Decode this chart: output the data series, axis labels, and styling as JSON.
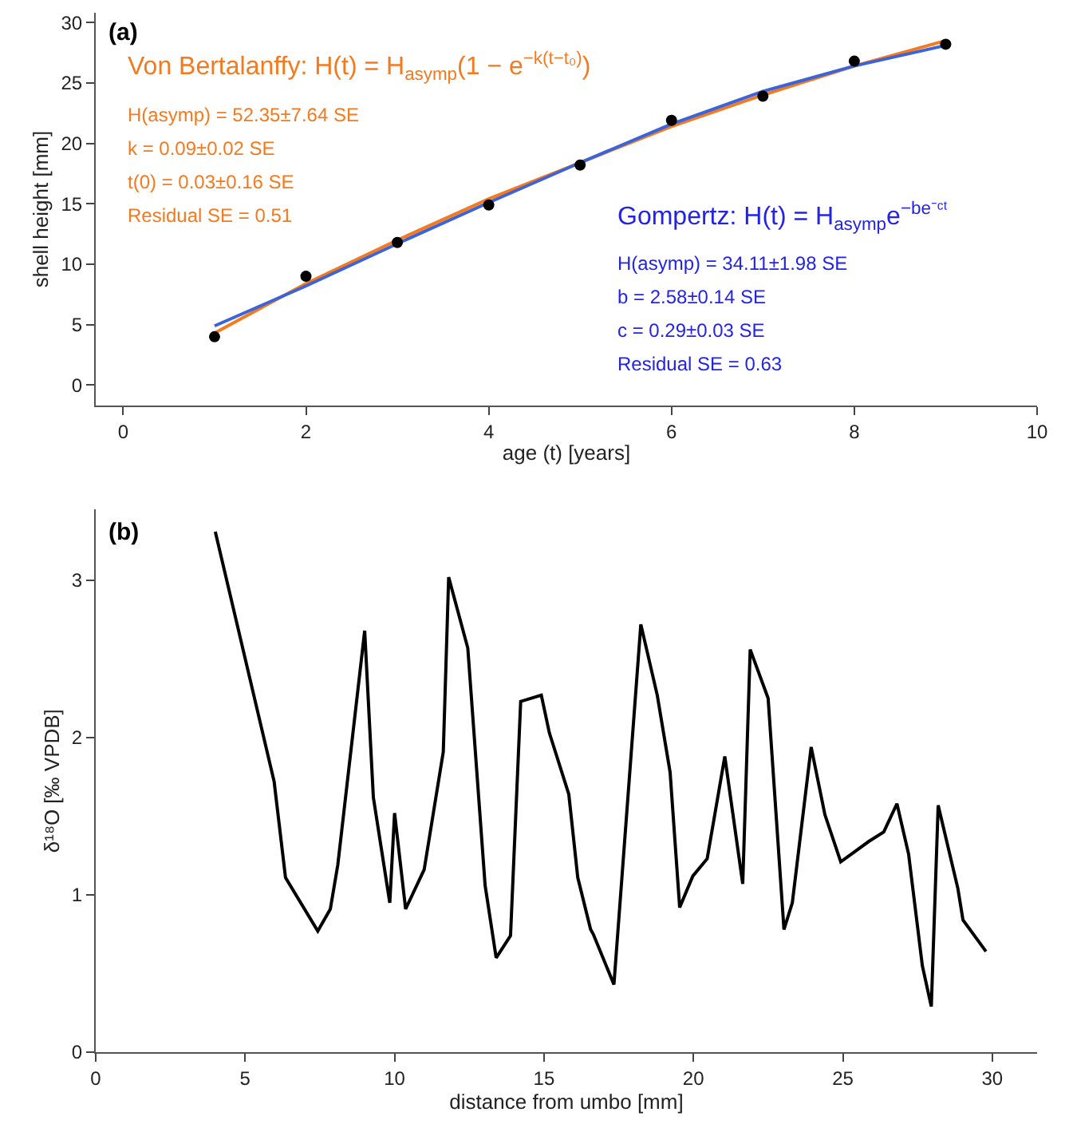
{
  "chart_data": [
    {
      "type": "line",
      "title": "(a)",
      "xlabel": "age (t) [years]",
      "ylabel": "shell height [mm]",
      "xlim": [
        -0.3,
        10
      ],
      "xticks": [
        0,
        2,
        4,
        6,
        8,
        10
      ],
      "ylim": [
        -1.7,
        30.8
      ],
      "yticks": [
        0,
        5,
        10,
        15,
        20,
        25,
        30
      ],
      "series": [
        {
          "color": "#f47a20",
          "x": [
            1,
            2,
            3,
            4,
            5,
            6,
            7,
            8,
            9
          ],
          "values": [
            4.3,
            8.4,
            12.0,
            15.4,
            18.4,
            21.4,
            24.0,
            26.4,
            28.5
          ]
        },
        {
          "color": "#3c64d8",
          "x": [
            1,
            2,
            3,
            4,
            5,
            6,
            7,
            8,
            9
          ],
          "values": [
            4.9,
            8.2,
            11.7,
            15.1,
            18.4,
            21.6,
            24.3,
            26.4,
            28.1
          ]
        },
        {
          "type": "scatter",
          "color": "#000000",
          "marker": "circle",
          "x": [
            1,
            2,
            3,
            4,
            5,
            6,
            7,
            8,
            9
          ],
          "values": [
            4.0,
            9.0,
            11.8,
            14.9,
            18.2,
            21.9,
            23.9,
            26.8,
            28.2
          ]
        }
      ],
      "annotations": [
        "Von Bertalanffy: H(t) = H$_{asymp}$(1 − e$^{−k(t−t₀)}$)",
        "H(asymp) = 52.35±7.64 SE",
        "k = 0.09±0.02 SE",
        "t(0) = 0.03±0.16 SE",
        "Residual SE = 0.51",
        "Gompertz: H(t) = H$_{asymp}$e$^{−be⁻ᶜᵗ}$",
        "H(asymp) = 34.11±1.98 SE",
        "b = 2.58±0.14 SE",
        "c = 0.29±0.03 SE",
        "Residual SE = 0.63"
      ]
    },
    {
      "type": "line",
      "title": "(b)",
      "xlabel": "distance from umbo [mm]",
      "ylabel": "δ¹⁸O [‰ VPDB]",
      "xlim": [
        0,
        31.5
      ],
      "xticks": [
        0,
        5,
        10,
        15,
        20,
        25,
        30
      ],
      "ylim": [
        0,
        3.45
      ],
      "yticks": [
        0,
        1,
        2,
        3
      ],
      "series": [
        {
          "color": "#000000",
          "x": [
            4.0,
            5.97,
            6.35,
            7.43,
            7.85,
            8.1,
            9.0,
            9.29,
            9.84,
            10.0,
            10.37,
            10.99,
            11.63,
            11.81,
            12.45,
            13.03,
            13.4,
            13.88,
            14.22,
            14.91,
            15.18,
            15.83,
            16.13,
            16.56,
            16.65,
            17.34,
            18.24,
            18.79,
            19.22,
            19.54,
            19.98,
            20.46,
            21.05,
            21.65,
            21.9,
            22.5,
            23.03,
            23.31,
            23.94,
            24.4,
            24.93,
            25.87,
            26.37,
            26.81,
            27.2,
            27.66,
            27.96,
            28.19,
            28.85,
            29.02,
            29.79
          ],
          "values": [
            3.31,
            1.72,
            1.11,
            0.77,
            0.91,
            1.19,
            2.68,
            1.62,
            0.95,
            1.52,
            0.91,
            1.16,
            1.91,
            3.02,
            2.57,
            1.06,
            0.6,
            0.74,
            2.23,
            2.27,
            2.03,
            1.64,
            1.11,
            0.78,
            0.75,
            0.43,
            2.72,
            2.27,
            1.78,
            0.92,
            1.12,
            1.23,
            1.88,
            1.07,
            2.56,
            2.25,
            0.78,
            0.95,
            1.94,
            1.51,
            1.21,
            1.34,
            1.4,
            1.58,
            1.26,
            0.55,
            0.29,
            1.57,
            1.04,
            0.84,
            0.64
          ]
        }
      ]
    }
  ]
}
